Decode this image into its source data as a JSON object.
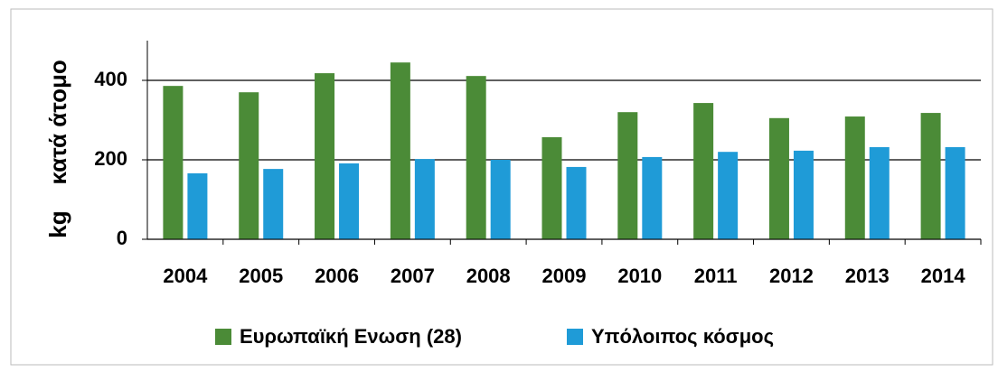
{
  "chart_data": {
    "type": "bar",
    "y_label": "kg    κατά άτομο",
    "categories": [
      "2004",
      "2005",
      "2006",
      "2007",
      "2008",
      "2009",
      "2010",
      "2011",
      "2012",
      "2013",
      "2014"
    ],
    "series": [
      {
        "name": "Ευρωπαϊκή Ενωση (28)",
        "color": "#4b8b37",
        "values": [
          386,
          370,
          418,
          445,
          411,
          257,
          320,
          343,
          305,
          309,
          318
        ]
      },
      {
        "name": "Υπόλοιπος κόσμος",
        "color": "#1f9bd7",
        "values": [
          166,
          177,
          191,
          202,
          200,
          182,
          207,
          220,
          223,
          232,
          232
        ]
      }
    ],
    "ylim": [
      0,
      500
    ],
    "yticks": [
      0,
      200,
      400
    ],
    "grid": true,
    "legend": "bottom"
  }
}
